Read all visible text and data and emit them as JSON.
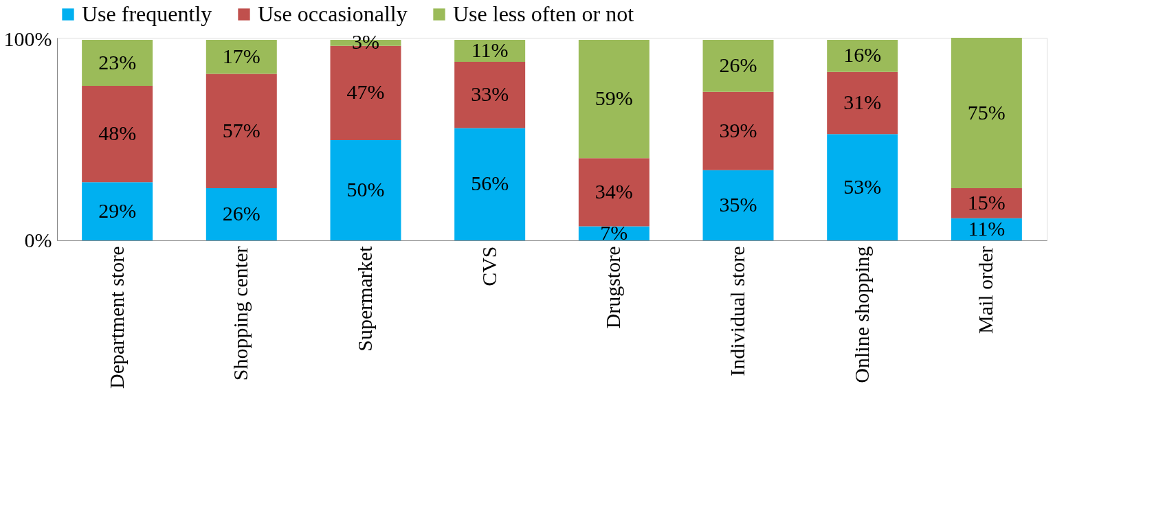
{
  "chart_data": {
    "type": "bar",
    "stacked": true,
    "categories": [
      "Department store",
      "Shopping center",
      "Supermarket",
      "CVS",
      "Drugstore",
      "Individual store",
      "Online shopping",
      "Mail order"
    ],
    "series": [
      {
        "name": "Use frequently",
        "color": "#00b0f0",
        "values": [
          29,
          26,
          50,
          56,
          7,
          35,
          53,
          11
        ],
        "value_labels": [
          "29%",
          "26%",
          "50%",
          "56%",
          "7%",
          "35%",
          "53%",
          "11%"
        ]
      },
      {
        "name": "Use occasionally",
        "color": "#c0504d",
        "values": [
          48,
          57,
          47,
          33,
          34,
          39,
          31,
          15
        ],
        "value_labels": [
          "48%",
          "57%",
          "47%",
          "33%",
          "34%",
          "39%",
          "31%",
          "15%"
        ]
      },
      {
        "name": "Use less often or not",
        "color": "#9bbb59",
        "values": [
          23,
          17,
          3,
          11,
          59,
          26,
          16,
          75
        ],
        "value_labels": [
          "23%",
          "17%",
          "3%",
          "11%",
          "59%",
          "26%",
          "16%",
          "75%"
        ]
      }
    ],
    "ylim": [
      0,
      101
    ],
    "yticks": [
      {
        "value": 0,
        "label": "0%"
      },
      {
        "value": 100,
        "label": "100%"
      }
    ],
    "grid": false,
    "legend": "top"
  }
}
